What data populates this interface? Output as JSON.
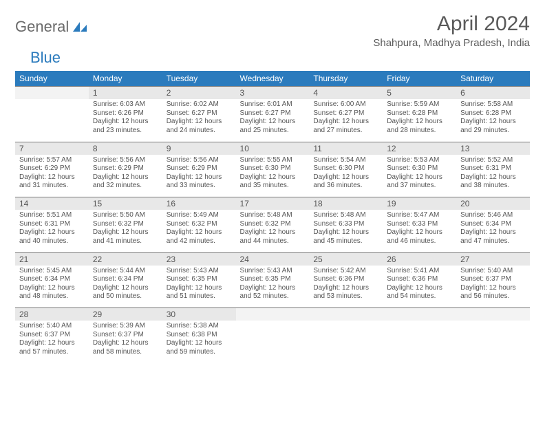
{
  "logo": {
    "part1": "General",
    "part2": "Blue"
  },
  "title": "April 2024",
  "subtitle": "Shahpura, Madhya Pradesh, India",
  "colors": {
    "header_bg": "#2b7bbd",
    "header_text": "#ffffff",
    "datenum_bg": "#e8e8e8",
    "body_text": "#555555",
    "border": "#777777",
    "logo_gray": "#6a6a6a",
    "logo_blue": "#2b7bbd",
    "page_bg": "#ffffff"
  },
  "day_names": [
    "Sunday",
    "Monday",
    "Tuesday",
    "Wednesday",
    "Thursday",
    "Friday",
    "Saturday"
  ],
  "weeks": [
    [
      null,
      {
        "n": "1",
        "sr": "Sunrise: 6:03 AM",
        "ss": "Sunset: 6:26 PM",
        "d1": "Daylight: 12 hours",
        "d2": "and 23 minutes."
      },
      {
        "n": "2",
        "sr": "Sunrise: 6:02 AM",
        "ss": "Sunset: 6:27 PM",
        "d1": "Daylight: 12 hours",
        "d2": "and 24 minutes."
      },
      {
        "n": "3",
        "sr": "Sunrise: 6:01 AM",
        "ss": "Sunset: 6:27 PM",
        "d1": "Daylight: 12 hours",
        "d2": "and 25 minutes."
      },
      {
        "n": "4",
        "sr": "Sunrise: 6:00 AM",
        "ss": "Sunset: 6:27 PM",
        "d1": "Daylight: 12 hours",
        "d2": "and 27 minutes."
      },
      {
        "n": "5",
        "sr": "Sunrise: 5:59 AM",
        "ss": "Sunset: 6:28 PM",
        "d1": "Daylight: 12 hours",
        "d2": "and 28 minutes."
      },
      {
        "n": "6",
        "sr": "Sunrise: 5:58 AM",
        "ss": "Sunset: 6:28 PM",
        "d1": "Daylight: 12 hours",
        "d2": "and 29 minutes."
      }
    ],
    [
      {
        "n": "7",
        "sr": "Sunrise: 5:57 AM",
        "ss": "Sunset: 6:29 PM",
        "d1": "Daylight: 12 hours",
        "d2": "and 31 minutes."
      },
      {
        "n": "8",
        "sr": "Sunrise: 5:56 AM",
        "ss": "Sunset: 6:29 PM",
        "d1": "Daylight: 12 hours",
        "d2": "and 32 minutes."
      },
      {
        "n": "9",
        "sr": "Sunrise: 5:56 AM",
        "ss": "Sunset: 6:29 PM",
        "d1": "Daylight: 12 hours",
        "d2": "and 33 minutes."
      },
      {
        "n": "10",
        "sr": "Sunrise: 5:55 AM",
        "ss": "Sunset: 6:30 PM",
        "d1": "Daylight: 12 hours",
        "d2": "and 35 minutes."
      },
      {
        "n": "11",
        "sr": "Sunrise: 5:54 AM",
        "ss": "Sunset: 6:30 PM",
        "d1": "Daylight: 12 hours",
        "d2": "and 36 minutes."
      },
      {
        "n": "12",
        "sr": "Sunrise: 5:53 AM",
        "ss": "Sunset: 6:30 PM",
        "d1": "Daylight: 12 hours",
        "d2": "and 37 minutes."
      },
      {
        "n": "13",
        "sr": "Sunrise: 5:52 AM",
        "ss": "Sunset: 6:31 PM",
        "d1": "Daylight: 12 hours",
        "d2": "and 38 minutes."
      }
    ],
    [
      {
        "n": "14",
        "sr": "Sunrise: 5:51 AM",
        "ss": "Sunset: 6:31 PM",
        "d1": "Daylight: 12 hours",
        "d2": "and 40 minutes."
      },
      {
        "n": "15",
        "sr": "Sunrise: 5:50 AM",
        "ss": "Sunset: 6:32 PM",
        "d1": "Daylight: 12 hours",
        "d2": "and 41 minutes."
      },
      {
        "n": "16",
        "sr": "Sunrise: 5:49 AM",
        "ss": "Sunset: 6:32 PM",
        "d1": "Daylight: 12 hours",
        "d2": "and 42 minutes."
      },
      {
        "n": "17",
        "sr": "Sunrise: 5:48 AM",
        "ss": "Sunset: 6:32 PM",
        "d1": "Daylight: 12 hours",
        "d2": "and 44 minutes."
      },
      {
        "n": "18",
        "sr": "Sunrise: 5:48 AM",
        "ss": "Sunset: 6:33 PM",
        "d1": "Daylight: 12 hours",
        "d2": "and 45 minutes."
      },
      {
        "n": "19",
        "sr": "Sunrise: 5:47 AM",
        "ss": "Sunset: 6:33 PM",
        "d1": "Daylight: 12 hours",
        "d2": "and 46 minutes."
      },
      {
        "n": "20",
        "sr": "Sunrise: 5:46 AM",
        "ss": "Sunset: 6:34 PM",
        "d1": "Daylight: 12 hours",
        "d2": "and 47 minutes."
      }
    ],
    [
      {
        "n": "21",
        "sr": "Sunrise: 5:45 AM",
        "ss": "Sunset: 6:34 PM",
        "d1": "Daylight: 12 hours",
        "d2": "and 48 minutes."
      },
      {
        "n": "22",
        "sr": "Sunrise: 5:44 AM",
        "ss": "Sunset: 6:34 PM",
        "d1": "Daylight: 12 hours",
        "d2": "and 50 minutes."
      },
      {
        "n": "23",
        "sr": "Sunrise: 5:43 AM",
        "ss": "Sunset: 6:35 PM",
        "d1": "Daylight: 12 hours",
        "d2": "and 51 minutes."
      },
      {
        "n": "24",
        "sr": "Sunrise: 5:43 AM",
        "ss": "Sunset: 6:35 PM",
        "d1": "Daylight: 12 hours",
        "d2": "and 52 minutes."
      },
      {
        "n": "25",
        "sr": "Sunrise: 5:42 AM",
        "ss": "Sunset: 6:36 PM",
        "d1": "Daylight: 12 hours",
        "d2": "and 53 minutes."
      },
      {
        "n": "26",
        "sr": "Sunrise: 5:41 AM",
        "ss": "Sunset: 6:36 PM",
        "d1": "Daylight: 12 hours",
        "d2": "and 54 minutes."
      },
      {
        "n": "27",
        "sr": "Sunrise: 5:40 AM",
        "ss": "Sunset: 6:37 PM",
        "d1": "Daylight: 12 hours",
        "d2": "and 56 minutes."
      }
    ],
    [
      {
        "n": "28",
        "sr": "Sunrise: 5:40 AM",
        "ss": "Sunset: 6:37 PM",
        "d1": "Daylight: 12 hours",
        "d2": "and 57 minutes."
      },
      {
        "n": "29",
        "sr": "Sunrise: 5:39 AM",
        "ss": "Sunset: 6:37 PM",
        "d1": "Daylight: 12 hours",
        "d2": "and 58 minutes."
      },
      {
        "n": "30",
        "sr": "Sunrise: 5:38 AM",
        "ss": "Sunset: 6:38 PM",
        "d1": "Daylight: 12 hours",
        "d2": "and 59 minutes."
      },
      null,
      null,
      null,
      null
    ]
  ]
}
